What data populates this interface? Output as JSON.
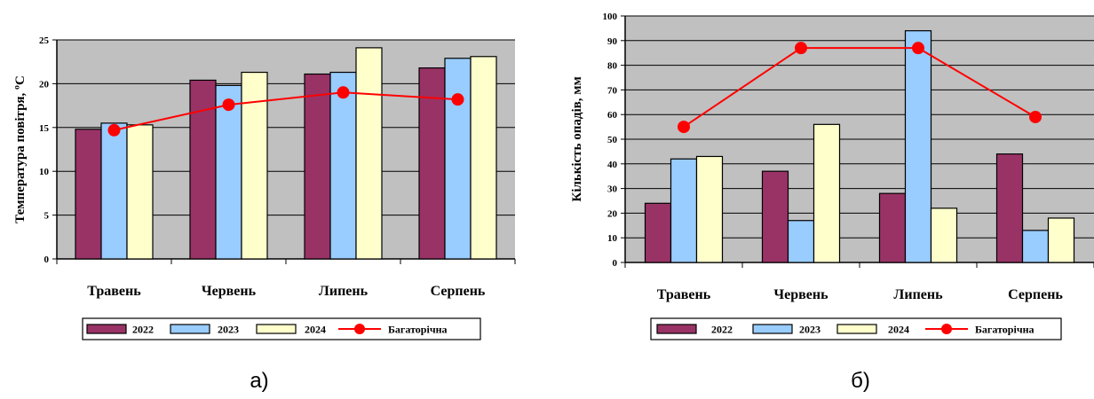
{
  "colors": {
    "plot_bg": "#c0c0c0",
    "series_2022": "#993366",
    "series_2023": "#99ccff",
    "series_2024": "#ffffcc",
    "series_mean": "#ff0000",
    "gridline": "#000000"
  },
  "chart_data": [
    {
      "type": "bar",
      "caption": "а)",
      "ylabel": "Температура повітря, ºС",
      "ylim": [
        0,
        25
      ],
      "yticks": [
        0,
        5,
        10,
        15,
        20,
        25
      ],
      "grid": true,
      "legend_position": "bottom",
      "categories": [
        "Травень",
        "Червень",
        "Липень",
        "Серпень"
      ],
      "series": [
        {
          "name": "2022",
          "kind": "bar",
          "values": [
            14.8,
            20.4,
            21.1,
            21.8
          ]
        },
        {
          "name": "2023",
          "kind": "bar",
          "values": [
            15.5,
            19.8,
            21.3,
            22.9
          ]
        },
        {
          "name": "2024",
          "kind": "bar",
          "values": [
            15.3,
            21.3,
            24.1,
            23.1
          ]
        },
        {
          "name": "Багаторічна",
          "kind": "line",
          "values": [
            14.7,
            17.6,
            19.0,
            18.2
          ]
        }
      ]
    },
    {
      "type": "bar",
      "caption": "б)",
      "ylabel": "Кількість опадів, мм",
      "ylim": [
        0,
        100
      ],
      "yticks": [
        0,
        10,
        20,
        30,
        40,
        50,
        60,
        70,
        80,
        90,
        100
      ],
      "grid": true,
      "legend_position": "bottom",
      "categories": [
        "Травень",
        "Червень",
        "Липень",
        "Серпень"
      ],
      "series": [
        {
          "name": "2022",
          "kind": "bar",
          "values": [
            24,
            37,
            28,
            44
          ]
        },
        {
          "name": "2023",
          "kind": "bar",
          "values": [
            42,
            17,
            94,
            13
          ]
        },
        {
          "name": "2024",
          "kind": "bar",
          "values": [
            43,
            56,
            22,
            18
          ]
        },
        {
          "name": "Багаторічна",
          "kind": "line",
          "values": [
            55,
            87,
            87,
            59
          ]
        }
      ]
    }
  ]
}
